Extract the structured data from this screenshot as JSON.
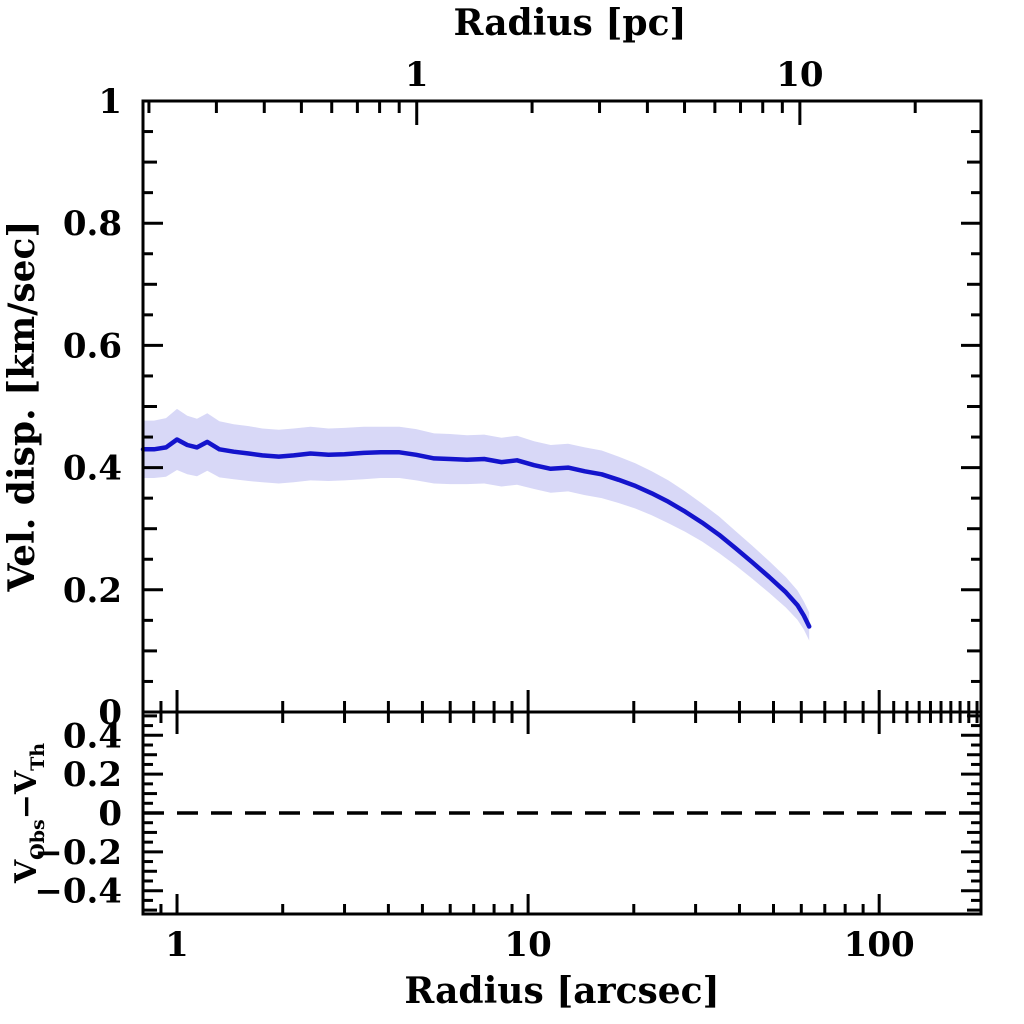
{
  "chart_data": {
    "type": "line",
    "x_axis_bottom": {
      "label": "Radius [arcsec]",
      "scale": "log",
      "lim": [
        0.8,
        195
      ],
      "major_ticks": [
        1,
        10,
        100
      ],
      "major_tick_labels": [
        "1",
        "10",
        "100"
      ],
      "minor_ticks": [
        0.9,
        2,
        3,
        4,
        5,
        6,
        7,
        8,
        9,
        20,
        30,
        40,
        50,
        60,
        70,
        80,
        90
      ],
      "divider_extra_minor_ticks": [
        110,
        120,
        130,
        140,
        150,
        160,
        170,
        180,
        190
      ]
    },
    "x_axis_top": {
      "label": "Radius [pc]",
      "scale": "log",
      "lim": [
        0.193,
        29.7
      ],
      "major_ticks": [
        1,
        10
      ],
      "major_tick_labels": [
        "1",
        "10"
      ],
      "minor_ticks": [
        0.2,
        0.3,
        0.4,
        0.5,
        0.6,
        0.7,
        0.8,
        0.9,
        2,
        3,
        4,
        5,
        6,
        7,
        8,
        9,
        20
      ]
    },
    "panel1": {
      "name": "velocity-dispersion-panel",
      "ylabel": "Vel. disp. [km/sec]",
      "ylim": [
        0,
        1
      ],
      "ytick_values": [
        0,
        0.2,
        0.4,
        0.6,
        0.8,
        1
      ],
      "ytick_labels": [
        "0",
        "0.2",
        "0.4",
        "0.6",
        "0.8",
        "1"
      ],
      "yminor_step": 0.05,
      "grid": false,
      "series": [
        {
          "name": "observed velocity dispersion with 1-sigma confidence band",
          "line_color": "#1414cc",
          "band_color": "#d8d8f7",
          "points": [
            [
              0.8,
              0.43,
              0.047
            ],
            [
              0.86,
              0.43,
              0.047
            ],
            [
              0.93,
              0.433,
              0.048
            ],
            [
              1.0,
              0.446,
              0.05
            ],
            [
              1.07,
              0.437,
              0.048
            ],
            [
              1.14,
              0.433,
              0.047
            ],
            [
              1.22,
              0.442,
              0.047
            ],
            [
              1.32,
              0.43,
              0.046
            ],
            [
              1.45,
              0.426,
              0.045
            ],
            [
              1.6,
              0.423,
              0.045
            ],
            [
              1.75,
              0.42,
              0.044
            ],
            [
              1.95,
              0.418,
              0.044
            ],
            [
              2.15,
              0.42,
              0.044
            ],
            [
              2.4,
              0.423,
              0.044
            ],
            [
              2.7,
              0.421,
              0.043
            ],
            [
              3.0,
              0.422,
              0.043
            ],
            [
              3.4,
              0.424,
              0.043
            ],
            [
              3.8,
              0.425,
              0.042
            ],
            [
              4.3,
              0.425,
              0.042
            ],
            [
              4.8,
              0.421,
              0.042
            ],
            [
              5.4,
              0.415,
              0.041
            ],
            [
              6.0,
              0.414,
              0.041
            ],
            [
              6.7,
              0.413,
              0.04
            ],
            [
              7.5,
              0.414,
              0.04
            ],
            [
              8.4,
              0.409,
              0.04
            ],
            [
              9.3,
              0.412,
              0.04
            ],
            [
              10.4,
              0.404,
              0.039
            ],
            [
              11.6,
              0.398,
              0.039
            ],
            [
              13.0,
              0.4,
              0.039
            ],
            [
              14.5,
              0.394,
              0.039
            ],
            [
              16.2,
              0.389,
              0.039
            ],
            [
              18.1,
              0.38,
              0.038
            ],
            [
              20.2,
              0.37,
              0.037
            ],
            [
              22.5,
              0.358,
              0.036
            ],
            [
              25.1,
              0.344,
              0.035
            ],
            [
              28.0,
              0.328,
              0.033
            ],
            [
              31.3,
              0.31,
              0.031
            ],
            [
              35.0,
              0.29,
              0.03
            ],
            [
              39.0,
              0.268,
              0.028
            ],
            [
              43.5,
              0.245,
              0.027
            ],
            [
              48.6,
              0.221,
              0.026
            ],
            [
              54.2,
              0.196,
              0.025
            ],
            [
              58.5,
              0.175,
              0.024
            ],
            [
              61.0,
              0.158,
              0.023
            ],
            [
              63.2,
              0.14,
              0.023
            ]
          ]
        }
      ]
    },
    "panel2": {
      "name": "residual-panel",
      "ylabel_parts": {
        "v1": "V",
        "sub1": "Obs",
        "minus": "−",
        "v2": "V",
        "sub2": "Th"
      },
      "ylim": [
        -0.52,
        0.52
      ],
      "ytick_values": [
        -0.4,
        -0.2,
        0,
        0.2,
        0.4
      ],
      "ytick_labels": [
        "−0.4",
        "−0.2",
        "0",
        "0.2",
        "0.4"
      ],
      "yminor_step": 0.05,
      "zero_line": {
        "value": 0,
        "style": "dashed",
        "color": "#000000"
      }
    },
    "colors": {
      "frame": "#000000",
      "background": "#ffffff"
    }
  }
}
